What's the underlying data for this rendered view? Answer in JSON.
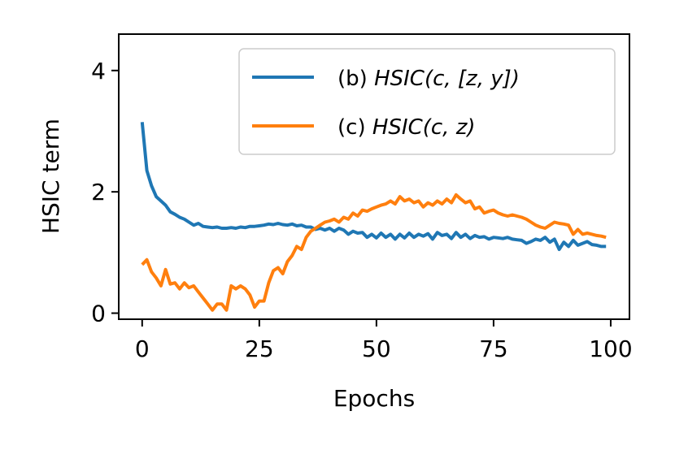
{
  "chart_data": {
    "type": "line",
    "xlabel": "Epochs",
    "ylabel": "HSIC term",
    "xlim": [
      -5,
      104
    ],
    "ylim": [
      -0.1,
      4.6
    ],
    "x_ticks": [
      0,
      25,
      50,
      75,
      100
    ],
    "y_ticks": [
      0,
      2,
      4
    ],
    "x_tick_labels": [
      "0",
      "25",
      "50",
      "75",
      "100"
    ],
    "y_tick_labels": [
      "0",
      "2",
      "4"
    ],
    "grid": false,
    "legend_position": "top-right",
    "series": [
      {
        "name": "(b) HSIC(c, [z, y])",
        "legend_prefix": "(b) ",
        "legend_math": "HSIC(c, [z, y])",
        "color": "#1f77b4",
        "x": [
          0,
          1,
          2,
          3,
          4,
          5,
          6,
          7,
          8,
          9,
          10,
          11,
          12,
          13,
          14,
          15,
          16,
          17,
          18,
          19,
          20,
          21,
          22,
          23,
          24,
          25,
          26,
          27,
          28,
          29,
          30,
          31,
          32,
          33,
          34,
          35,
          36,
          37,
          38,
          39,
          40,
          41,
          42,
          43,
          44,
          45,
          46,
          47,
          48,
          49,
          50,
          51,
          52,
          53,
          54,
          55,
          56,
          57,
          58,
          59,
          60,
          61,
          62,
          63,
          64,
          65,
          66,
          67,
          68,
          69,
          70,
          71,
          72,
          73,
          74,
          75,
          76,
          77,
          78,
          79,
          80,
          81,
          82,
          83,
          84,
          85,
          86,
          87,
          88,
          89,
          90,
          91,
          92,
          93,
          94,
          95,
          96,
          97,
          98,
          99
        ],
        "y": [
          3.15,
          2.35,
          2.1,
          1.92,
          1.85,
          1.78,
          1.67,
          1.63,
          1.58,
          1.55,
          1.5,
          1.45,
          1.48,
          1.43,
          1.42,
          1.41,
          1.42,
          1.4,
          1.4,
          1.41,
          1.4,
          1.42,
          1.41,
          1.43,
          1.43,
          1.44,
          1.45,
          1.47,
          1.46,
          1.48,
          1.46,
          1.45,
          1.47,
          1.44,
          1.45,
          1.42,
          1.42,
          1.38,
          1.4,
          1.37,
          1.4,
          1.35,
          1.4,
          1.37,
          1.3,
          1.35,
          1.32,
          1.33,
          1.25,
          1.3,
          1.24,
          1.32,
          1.25,
          1.3,
          1.22,
          1.3,
          1.24,
          1.32,
          1.25,
          1.3,
          1.27,
          1.31,
          1.22,
          1.33,
          1.28,
          1.3,
          1.23,
          1.33,
          1.25,
          1.3,
          1.23,
          1.28,
          1.25,
          1.26,
          1.22,
          1.25,
          1.24,
          1.23,
          1.25,
          1.22,
          1.21,
          1.2,
          1.15,
          1.18,
          1.22,
          1.2,
          1.25,
          1.17,
          1.22,
          1.05,
          1.17,
          1.1,
          1.2,
          1.12,
          1.15,
          1.18,
          1.13,
          1.12,
          1.1,
          1.1
        ]
      },
      {
        "name": "(c) HSIC(c, z)",
        "legend_prefix": "(c) ",
        "legend_math": "HSIC(c, z)",
        "color": "#ff7f0e",
        "x": [
          0,
          1,
          2,
          3,
          4,
          5,
          6,
          7,
          8,
          9,
          10,
          11,
          12,
          13,
          14,
          15,
          16,
          17,
          18,
          19,
          20,
          21,
          22,
          23,
          24,
          25,
          26,
          27,
          28,
          29,
          30,
          31,
          32,
          33,
          34,
          35,
          36,
          37,
          38,
          39,
          40,
          41,
          42,
          43,
          44,
          45,
          46,
          47,
          48,
          49,
          50,
          51,
          52,
          53,
          54,
          55,
          56,
          57,
          58,
          59,
          60,
          61,
          62,
          63,
          64,
          65,
          66,
          67,
          68,
          69,
          70,
          71,
          72,
          73,
          74,
          75,
          76,
          77,
          78,
          79,
          80,
          81,
          82,
          83,
          84,
          85,
          86,
          87,
          88,
          89,
          90,
          91,
          92,
          93,
          94,
          95,
          96,
          97,
          98,
          99
        ],
        "y": [
          0.8,
          0.88,
          0.68,
          0.58,
          0.45,
          0.72,
          0.48,
          0.5,
          0.4,
          0.5,
          0.42,
          0.45,
          0.35,
          0.25,
          0.15,
          0.05,
          0.15,
          0.15,
          0.05,
          0.45,
          0.4,
          0.45,
          0.4,
          0.3,
          0.1,
          0.2,
          0.2,
          0.5,
          0.7,
          0.75,
          0.65,
          0.85,
          0.95,
          1.1,
          1.05,
          1.25,
          1.35,
          1.4,
          1.45,
          1.5,
          1.52,
          1.55,
          1.5,
          1.58,
          1.55,
          1.65,
          1.6,
          1.7,
          1.68,
          1.72,
          1.75,
          1.78,
          1.8,
          1.85,
          1.8,
          1.92,
          1.85,
          1.88,
          1.82,
          1.85,
          1.75,
          1.82,
          1.78,
          1.85,
          1.8,
          1.88,
          1.82,
          1.95,
          1.88,
          1.82,
          1.85,
          1.72,
          1.75,
          1.65,
          1.68,
          1.7,
          1.65,
          1.62,
          1.6,
          1.62,
          1.6,
          1.58,
          1.55,
          1.5,
          1.45,
          1.42,
          1.4,
          1.45,
          1.5,
          1.48,
          1.47,
          1.45,
          1.3,
          1.38,
          1.3,
          1.32,
          1.3,
          1.28,
          1.27,
          1.25
        ]
      }
    ]
  }
}
